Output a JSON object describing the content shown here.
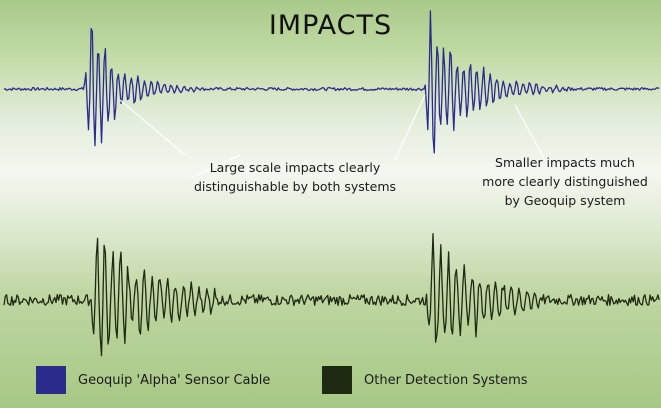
{
  "chart_data": {
    "type": "line",
    "title": "IMPACTS",
    "series": [
      {
        "name": "Geoquip 'Alpha' Sensor Cable",
        "color": "#2b2b8c",
        "bursts": [
          {
            "peak_amplitude": 1.0,
            "decay": "fast"
          },
          {
            "peak_amplitude": 1.0,
            "decay": "moderate"
          }
        ],
        "baseline_noise": "low"
      },
      {
        "name": "Other Detection Systems",
        "color": "#1f2a12",
        "bursts": [
          {
            "peak_amplitude": 1.0,
            "decay": "slow"
          },
          {
            "peak_amplitude": 0.95,
            "decay": "slow"
          }
        ],
        "baseline_noise": "high"
      }
    ],
    "annotations": [
      {
        "id": "large",
        "text_lines": [
          "Large scale impacts clearly",
          "distinguishable by both systems"
        ]
      },
      {
        "id": "small",
        "text_lines": [
          "Smaller impacts much",
          "more clearly distinguished",
          "by Geoquip system"
        ]
      }
    ],
    "legend_placement": "bottom",
    "axes_shown": false,
    "grid": false
  },
  "legend": [
    {
      "label": "Geoquip 'Alpha' Sensor Cable",
      "color": "#2b2b8c"
    },
    {
      "label": "Other Detection Systems",
      "color": "#1f2a12"
    }
  ]
}
